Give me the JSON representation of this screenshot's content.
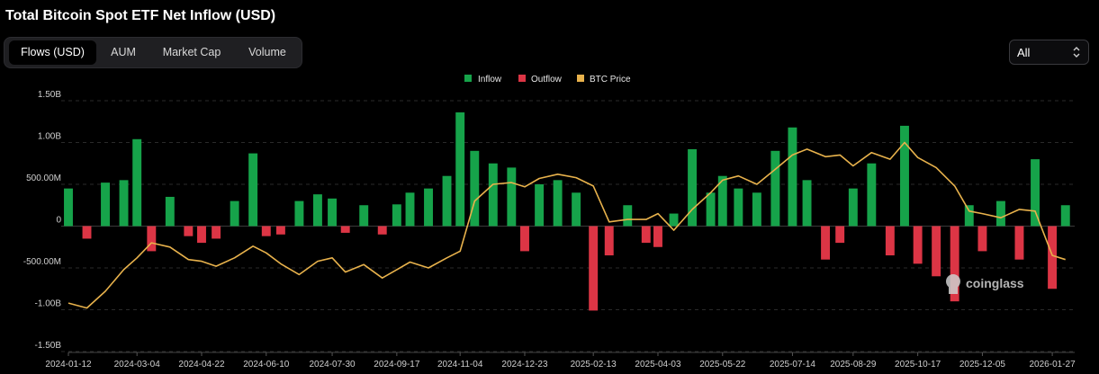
{
  "title": "Total Bitcoin Spot ETF Net Inflow (USD)",
  "tabs": [
    {
      "label": "Flows (USD)",
      "active": true
    },
    {
      "label": "AUM",
      "active": false
    },
    {
      "label": "Market Cap",
      "active": false
    },
    {
      "label": "Volume",
      "active": false
    }
  ],
  "range_select": {
    "value": "All",
    "icon": "chevron-updown-icon"
  },
  "watermark": "coinglass",
  "colors": {
    "inflow": "#16a34a",
    "outflow": "#dc3545",
    "btc_price": "#e8b24c",
    "grid": "#2a2a2a"
  },
  "chart_data": {
    "type": "bar",
    "legend": [
      "Inflow",
      "Outflow",
      "BTC Price"
    ],
    "legend_position": "top-center",
    "grid": true,
    "ylim": [
      -1.5,
      1.5
    ],
    "y_ticks": [
      "1.50B",
      "1.00B",
      "500.00M",
      "0",
      "-500.00M",
      "-1.00B",
      "-1.50B"
    ],
    "y_tick_values": [
      1.5,
      1.0,
      0.5,
      0,
      -0.5,
      -1.0,
      -1.5
    ],
    "x_ticks": [
      "2024-01-12",
      "2024-03-04",
      "2024-04-22",
      "2024-06-10",
      "2024-07-30",
      "2024-09-17",
      "2024-11-04",
      "2024-12-23",
      "2025-02-13",
      "2025-04-03",
      "2025-05-22",
      "2025-07-14",
      "2025-08-29",
      "2025-10-17",
      "2025-12-05",
      "2026-01-27"
    ],
    "x_range": [
      "2024-01-12",
      "2026-02-13"
    ],
    "series": [
      {
        "name": "Net Flow",
        "unit": "B USD",
        "dates": [
          "2024-01-12",
          "2024-01-26",
          "2024-02-09",
          "2024-02-23",
          "2024-03-04",
          "2024-03-15",
          "2024-03-29",
          "2024-04-12",
          "2024-04-22",
          "2024-05-03",
          "2024-05-17",
          "2024-05-31",
          "2024-06-10",
          "2024-06-21",
          "2024-07-05",
          "2024-07-19",
          "2024-07-30",
          "2024-08-09",
          "2024-08-23",
          "2024-09-06",
          "2024-09-17",
          "2024-09-27",
          "2024-10-11",
          "2024-10-25",
          "2024-11-04",
          "2024-11-15",
          "2024-11-29",
          "2024-12-13",
          "2024-12-23",
          "2025-01-03",
          "2025-01-17",
          "2025-01-31",
          "2025-02-13",
          "2025-02-25",
          "2025-03-11",
          "2025-03-25",
          "2025-04-03",
          "2025-04-15",
          "2025-04-29",
          "2025-05-13",
          "2025-05-22",
          "2025-06-03",
          "2025-06-17",
          "2025-07-01",
          "2025-07-14",
          "2025-07-25",
          "2025-08-08",
          "2025-08-19",
          "2025-08-29",
          "2025-09-12",
          "2025-09-26",
          "2025-10-07",
          "2025-10-17",
          "2025-10-31",
          "2025-11-14",
          "2025-11-25",
          "2025-12-05",
          "2025-12-19",
          "2026-01-02",
          "2026-01-14",
          "2026-01-27",
          "2026-02-06"
        ],
        "values": [
          0.45,
          -0.15,
          0.52,
          0.55,
          1.04,
          -0.3,
          0.35,
          -0.12,
          -0.2,
          -0.15,
          0.3,
          0.87,
          -0.12,
          -0.1,
          0.3,
          0.38,
          0.33,
          -0.08,
          0.25,
          -0.1,
          0.26,
          0.4,
          0.45,
          0.6,
          1.36,
          0.9,
          0.75,
          0.7,
          -0.3,
          0.5,
          0.55,
          0.4,
          -1.01,
          -0.35,
          0.25,
          -0.2,
          -0.25,
          0.15,
          0.92,
          0.4,
          0.6,
          0.45,
          0.4,
          0.9,
          1.18,
          0.55,
          -0.4,
          -0.2,
          0.45,
          0.75,
          -0.35,
          1.2,
          -0.45,
          -0.6,
          -0.9,
          0.25,
          -0.3,
          0.3,
          -0.4,
          0.8,
          -0.75,
          0.25
        ]
      },
      {
        "name": "BTC Price",
        "dates": [
          "2024-01-12",
          "2024-01-26",
          "2024-02-09",
          "2024-02-23",
          "2024-03-04",
          "2024-03-15",
          "2024-03-29",
          "2024-04-12",
          "2024-04-22",
          "2024-05-03",
          "2024-05-17",
          "2024-05-31",
          "2024-06-10",
          "2024-06-21",
          "2024-07-05",
          "2024-07-19",
          "2024-07-30",
          "2024-08-09",
          "2024-08-23",
          "2024-09-06",
          "2024-09-17",
          "2024-09-27",
          "2024-10-11",
          "2024-10-25",
          "2024-11-04",
          "2024-11-15",
          "2024-11-29",
          "2024-12-13",
          "2024-12-23",
          "2025-01-03",
          "2025-01-17",
          "2025-01-31",
          "2025-02-13",
          "2025-02-25",
          "2025-03-11",
          "2025-03-25",
          "2025-04-03",
          "2025-04-15",
          "2025-04-29",
          "2025-05-13",
          "2025-05-22",
          "2025-06-03",
          "2025-06-17",
          "2025-07-01",
          "2025-07-14",
          "2025-07-25",
          "2025-08-08",
          "2025-08-19",
          "2025-08-29",
          "2025-09-12",
          "2025-09-26",
          "2025-10-07",
          "2025-10-17",
          "2025-10-31",
          "2025-11-14",
          "2025-11-25",
          "2025-12-05",
          "2025-12-19",
          "2026-01-02",
          "2026-01-14",
          "2026-01-27",
          "2026-02-06"
        ],
        "values": [
          -0.92,
          -0.98,
          -0.78,
          -0.52,
          -0.38,
          -0.2,
          -0.25,
          -0.4,
          -0.42,
          -0.48,
          -0.38,
          -0.24,
          -0.32,
          -0.45,
          -0.58,
          -0.42,
          -0.38,
          -0.55,
          -0.46,
          -0.62,
          -0.52,
          -0.43,
          -0.5,
          -0.38,
          -0.3,
          0.3,
          0.5,
          0.52,
          0.47,
          0.57,
          0.62,
          0.58,
          0.48,
          0.05,
          0.08,
          0.08,
          0.15,
          -0.05,
          0.2,
          0.4,
          0.55,
          0.6,
          0.5,
          0.68,
          0.85,
          0.92,
          0.83,
          0.85,
          0.72,
          0.88,
          0.8,
          1.0,
          0.82,
          0.7,
          0.48,
          0.18,
          0.15,
          0.1,
          0.2,
          0.18,
          -0.35,
          -0.4
        ]
      }
    ]
  }
}
